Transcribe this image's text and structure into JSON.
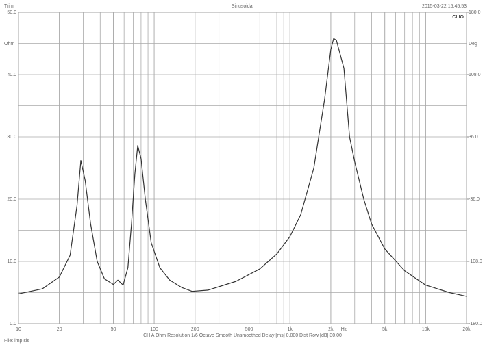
{
  "chart_data": {
    "type": "line",
    "top_left": "Trim",
    "title": "Sinusoidal",
    "timestamp": "2015-03-22 15:45:53",
    "brand": "CLIO",
    "ylabel": "Ohm",
    "y2label": "Deg",
    "xlabel": "Hz",
    "info": "CH A   Ohm   Resolution 1/6 Octave   Smooth Unsmoothed   Delay [ms] 0.000   Dist Row [dB] 30.00",
    "file": "File: imp.sis",
    "xscale": "log",
    "xlim": [
      10,
      20000
    ],
    "xticks": [
      10,
      20,
      50,
      100,
      200,
      500,
      {
        "value": 1000,
        "label": "1k"
      },
      {
        "value": 2000,
        "label": "2k"
      },
      {
        "value": 5000,
        "label": "5k"
      },
      {
        "value": 10000,
        "label": "10k"
      },
      {
        "value": 20000,
        "label": "20k"
      }
    ],
    "ylim": [
      0,
      50
    ],
    "yticks": [
      {
        "value": 0,
        "label": "0.0"
      },
      {
        "value": 10,
        "label": "10.0"
      },
      {
        "value": 20,
        "label": "20.0"
      },
      {
        "value": 30,
        "label": "30.0"
      },
      {
        "value": 40,
        "label": "40.0"
      },
      {
        "value": 50,
        "label": "50.0"
      }
    ],
    "y2lim": [
      -180,
      180
    ],
    "y2ticks": [
      {
        "value": -180,
        "label": "-180.0"
      },
      {
        "value": -108,
        "label": "-108.0"
      },
      {
        "value": -36,
        "label": "-36.0"
      },
      {
        "value": 36,
        "label": "36.0"
      },
      {
        "value": 108,
        "label": "108.0"
      },
      {
        "value": 180,
        "label": "180.0"
      }
    ],
    "grid": true,
    "series": [
      {
        "name": "Ohm",
        "color": "#333333",
        "x": [
          10,
          15,
          20,
          24,
          27,
          28.8,
          31,
          34,
          38,
          43,
          50,
          54,
          59,
          64,
          68,
          72,
          75.6,
          80,
          86,
          95,
          110,
          130,
          160,
          190,
          250,
          400,
          600,
          800,
          1000,
          1200,
          1500,
          1800,
          2000,
          2100,
          2200,
          2500,
          2750,
          3000,
          3500,
          4000,
          5000,
          7000,
          10000,
          15000,
          20000
        ],
        "values": [
          4.8,
          5.6,
          7.5,
          11,
          19,
          26.2,
          23,
          16,
          10,
          7.2,
          6.3,
          7,
          6.2,
          9,
          16,
          24,
          28.6,
          26.5,
          20,
          13,
          9,
          7,
          5.8,
          5.2,
          5.4,
          6.8,
          8.8,
          11.2,
          14,
          17.5,
          25,
          36,
          44,
          45.8,
          45.5,
          41,
          30,
          26,
          20,
          16,
          12,
          8.5,
          6.2,
          5,
          4.4
        ]
      }
    ]
  }
}
